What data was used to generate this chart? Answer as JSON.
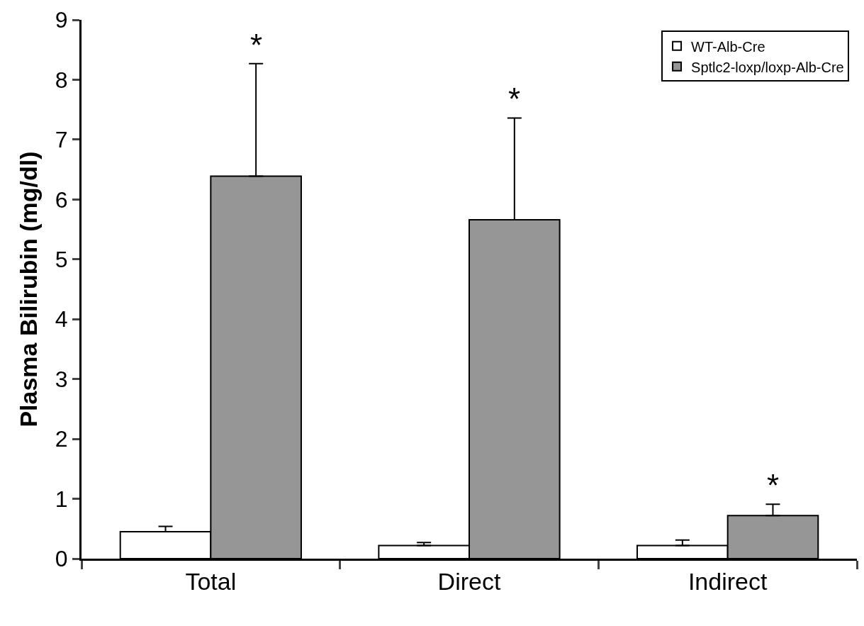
{
  "chart_data": {
    "type": "bar",
    "ylabel": "Plasma Bilirubin (mg/dl)",
    "categories": [
      "Total",
      "Direct",
      "Indirect"
    ],
    "series": [
      {
        "name": "WT-Alb-Cre",
        "color": "#ffffff",
        "values": [
          0.45,
          0.22,
          0.22
        ],
        "errors": [
          0.09,
          0.05,
          0.09
        ]
      },
      {
        "name": "Sptlc2-loxp/loxp-Alb-Cre",
        "color": "#969696",
        "values": [
          6.39,
          5.66,
          0.72
        ],
        "errors": [
          1.88,
          1.7,
          0.19
        ]
      }
    ],
    "ylim": [
      0,
      9
    ],
    "yticks": [
      0,
      1,
      2,
      3,
      4,
      5,
      6,
      7,
      8,
      9
    ],
    "annotations": [
      "*",
      "*",
      "*"
    ],
    "legend": "top right"
  }
}
